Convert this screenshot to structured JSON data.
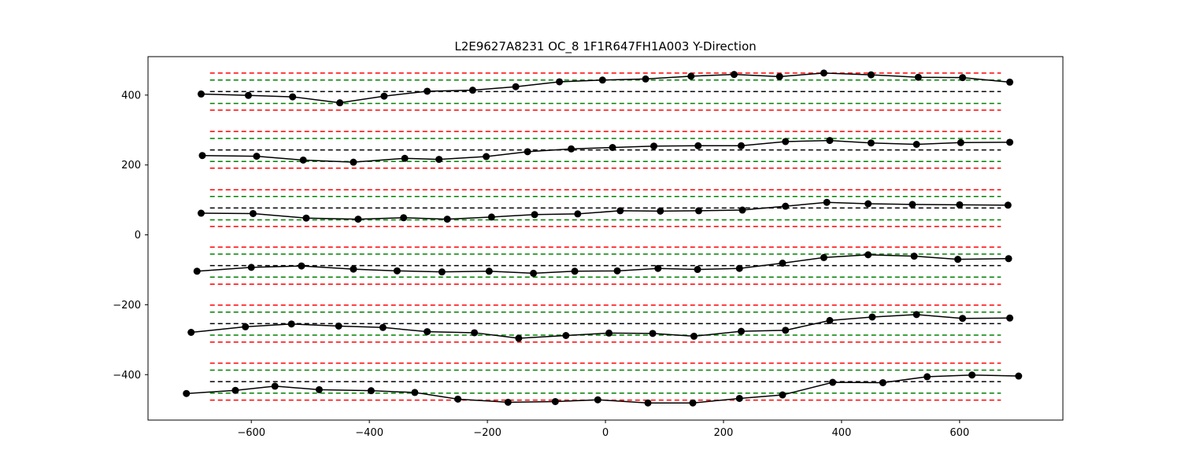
{
  "chart_data": {
    "type": "line",
    "title": "L2E9627A8231  OC_8  1F1R647FH1A003  Y-Direction",
    "xlabel": "",
    "ylabel": "",
    "xlim": [
      -775,
      775
    ],
    "ylim": [
      -530,
      510
    ],
    "xticks": [
      -600,
      -400,
      -200,
      0,
      200,
      400,
      600
    ],
    "yticks": [
      -400,
      -200,
      0,
      200,
      400
    ],
    "xtick_labels": [
      "−600",
      "−400",
      "−200",
      "0",
      "200",
      "400",
      "600"
    ],
    "ytick_labels": [
      "−400",
      "−200",
      "0",
      "200",
      "400"
    ],
    "grid": false,
    "colors": {
      "measured": "#000000",
      "nominal": "#000000",
      "inner_tolerance": "#008000",
      "outer_tolerance": "#ff0000"
    },
    "reference_lines": {
      "x_range": [
        -670,
        670
      ],
      "groups": [
        {
          "nominal": 410,
          "inner": [
            376,
            443
          ],
          "outer": [
            357,
            463
          ]
        },
        {
          "nominal": 243,
          "inner": [
            210,
            276
          ],
          "outer": [
            191,
            296
          ]
        },
        {
          "nominal": 77,
          "inner": [
            43,
            110
          ],
          "outer": [
            24,
            129
          ]
        },
        {
          "nominal": -88,
          "inner": [
            -121,
            -55
          ],
          "outer": [
            -141,
            -35
          ]
        },
        {
          "nominal": -254,
          "inner": [
            -287,
            -221
          ],
          "outer": [
            -307,
            -201
          ]
        },
        {
          "nominal": -420,
          "inner": [
            -453,
            -387
          ],
          "outer": [
            -473,
            -367
          ]
        }
      ]
    },
    "series": [
      {
        "x": [
          -685,
          -605,
          -530,
          -450,
          -375,
          -302,
          -225,
          -152,
          -78,
          -5,
          68,
          145,
          218,
          295,
          370,
          450,
          530,
          605,
          685
        ],
        "y": [
          403,
          399,
          395,
          378,
          397,
          411,
          414,
          424,
          438,
          443,
          446,
          454,
          459,
          453,
          463,
          458,
          451,
          450,
          437
        ]
      },
      {
        "x": [
          -683,
          -591,
          -512,
          -427,
          -340,
          -282,
          -202,
          -132,
          -58,
          12,
          82,
          157,
          230,
          305,
          380,
          450,
          527,
          602,
          685
        ],
        "y": [
          227,
          225,
          214,
          208,
          219,
          216,
          224,
          238,
          246,
          250,
          254,
          255,
          255,
          267,
          270,
          263,
          259,
          264,
          265
        ]
      },
      {
        "x": [
          -685,
          -597,
          -507,
          -419,
          -342,
          -268,
          -193,
          -120,
          -47,
          25,
          93,
          158,
          232,
          305,
          375,
          445,
          520,
          600,
          682
        ],
        "y": [
          62,
          61,
          48,
          45,
          49,
          45,
          51,
          58,
          60,
          69,
          68,
          69,
          71,
          82,
          93,
          89,
          87,
          86,
          85
        ]
      },
      {
        "x": [
          -692,
          -600,
          -515,
          -427,
          -353,
          -277,
          -197,
          -122,
          -52,
          20,
          89,
          156,
          227,
          300,
          370,
          445,
          523,
          597,
          683
        ],
        "y": [
          -104,
          -93,
          -89,
          -98,
          -103,
          -106,
          -104,
          -110,
          -104,
          -103,
          -96,
          -99,
          -96,
          -81,
          -65,
          -57,
          -61,
          -70,
          -68
        ]
      },
      {
        "x": [
          -702,
          -610,
          -532,
          -452,
          -377,
          -302,
          -222,
          -147,
          -67,
          6,
          80,
          150,
          230,
          305,
          380,
          452,
          527,
          605,
          685
        ],
        "y": [
          -279,
          -263,
          -255,
          -261,
          -265,
          -277,
          -280,
          -296,
          -288,
          -281,
          -282,
          -290,
          -276,
          -273,
          -245,
          -235,
          -228,
          -239,
          -238
        ]
      },
      {
        "x": [
          -710,
          -627,
          -560,
          -485,
          -397,
          -323,
          -250,
          -165,
          -85,
          -13,
          72,
          148,
          227,
          300,
          385,
          470,
          545,
          621,
          700
        ],
        "y": [
          -454,
          -445,
          -433,
          -443,
          -446,
          -451,
          -470,
          -479,
          -477,
          -472,
          -481,
          -481,
          -468,
          -458,
          -422,
          -423,
          -406,
          -401,
          -404
        ]
      }
    ]
  }
}
